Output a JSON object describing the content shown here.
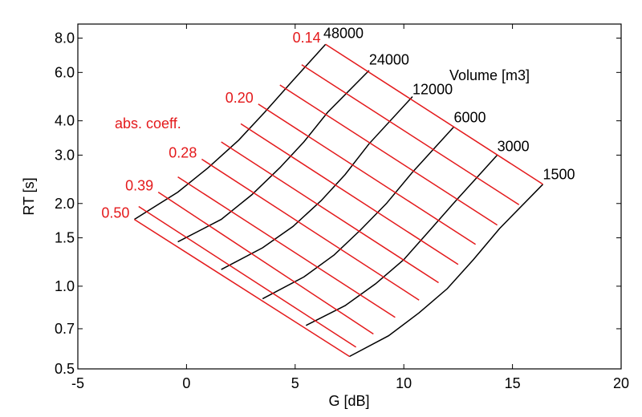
{
  "chart_data": {
    "type": "line",
    "title": "",
    "xlabel": "G  [dB]",
    "ylabel": "RT  [s]",
    "xlim": [
      -5,
      20
    ],
    "ylim": [
      0.5,
      9.0
    ],
    "y_scale": "log",
    "grid": false,
    "x_ticks": [
      -5,
      0,
      5,
      10,
      15,
      20
    ],
    "x_tick_labels": [
      "-5",
      "0",
      "5",
      "10",
      "15",
      "20"
    ],
    "y_ticks": [
      0.5,
      0.7,
      1.0,
      1.5,
      2.0,
      3.0,
      4.0,
      6.0,
      8.0
    ],
    "y_tick_labels": [
      "0.5",
      "0.7",
      "1.0",
      "1.5",
      "2.0",
      "3.0",
      "4.0",
      "6.0",
      "8.0"
    ],
    "colors": {
      "absorption": "#e41a1c",
      "volume": "#000000",
      "frame": "#000000"
    },
    "volume_label": "Volume [m3]",
    "absorption_label": "abs. coeff.",
    "absorption_series": [
      {
        "name": "0.14",
        "label_anchor": [
          -2.0,
          7.6
        ],
        "points": [
          [
            6.4,
            7.6
          ],
          [
            16.4,
            2.35
          ]
        ]
      },
      {
        "name": "",
        "points": [
          [
            5.3,
            6.4
          ],
          [
            15.3,
            1.98
          ]
        ]
      },
      {
        "name": "",
        "points": [
          [
            4.3,
            5.4
          ],
          [
            14.3,
            1.67
          ]
        ]
      },
      {
        "name": "0.20",
        "label_anchor": [
          -2.0,
          4.6
        ],
        "points": [
          [
            3.3,
            4.6
          ],
          [
            13.3,
            1.42
          ]
        ]
      },
      {
        "name": "",
        "points": [
          [
            2.5,
            3.9
          ],
          [
            12.5,
            1.2
          ]
        ]
      },
      {
        "name": "",
        "points": [
          [
            1.6,
            3.35
          ],
          [
            11.6,
            1.03
          ]
        ]
      },
      {
        "name": "0.28",
        "label_anchor": [
          -2.0,
          2.9
        ],
        "points": [
          [
            0.7,
            2.9
          ],
          [
            10.7,
            0.89
          ]
        ]
      },
      {
        "name": "",
        "points": [
          [
            -0.4,
            2.5
          ],
          [
            9.6,
            0.77
          ]
        ]
      },
      {
        "name": "0.39",
        "label_anchor": [
          -2.0,
          2.2
        ],
        "points": [
          [
            -1.3,
            2.2
          ],
          [
            8.6,
            0.67
          ]
        ]
      },
      {
        "name": "",
        "points": [
          [
            -2.2,
            1.95
          ],
          [
            7.8,
            0.6
          ]
        ]
      },
      {
        "name": "0.50",
        "label_anchor": [
          -2.0,
          1.75
        ],
        "points": [
          [
            -2.4,
            1.75
          ],
          [
            7.5,
            0.555
          ]
        ]
      }
    ],
    "volume_series": [
      {
        "name": "48000",
        "label_anchor": [
          6.3,
          8.0
        ],
        "points": [
          [
            -2.4,
            1.75
          ],
          [
            -0.4,
            2.2
          ],
          [
            1.0,
            2.7
          ],
          [
            2.4,
            3.4
          ],
          [
            3.6,
            4.3
          ],
          [
            4.8,
            5.5
          ],
          [
            6.4,
            7.6
          ]
        ]
      },
      {
        "name": "24000",
        "label_anchor": [
          8.4,
          6.4
        ],
        "points": [
          [
            -0.4,
            1.45
          ],
          [
            1.6,
            1.75
          ],
          [
            3.0,
            2.15
          ],
          [
            4.3,
            2.7
          ],
          [
            5.4,
            3.35
          ],
          [
            6.5,
            4.3
          ],
          [
            8.4,
            6.1
          ]
        ]
      },
      {
        "name": "12000",
        "label_anchor": [
          10.4,
          5.0
        ],
        "points": [
          [
            1.6,
            1.15
          ],
          [
            3.5,
            1.38
          ],
          [
            4.9,
            1.65
          ],
          [
            6.2,
            2.05
          ],
          [
            7.3,
            2.55
          ],
          [
            8.4,
            3.3
          ],
          [
            10.4,
            4.9
          ]
        ]
      },
      {
        "name": "6000",
        "label_anchor": [
          12.3,
          3.95
        ],
        "points": [
          [
            3.5,
            0.9
          ],
          [
            5.4,
            1.08
          ],
          [
            6.8,
            1.3
          ],
          [
            8.0,
            1.6
          ],
          [
            9.2,
            2.0
          ],
          [
            10.4,
            2.6
          ],
          [
            12.3,
            3.8
          ]
        ]
      },
      {
        "name": "3000",
        "label_anchor": [
          14.3,
          3.1
        ],
        "points": [
          [
            5.5,
            0.72
          ],
          [
            7.3,
            0.85
          ],
          [
            8.7,
            1.02
          ],
          [
            10.0,
            1.25
          ],
          [
            11.2,
            1.6
          ],
          [
            12.4,
            2.05
          ],
          [
            14.3,
            3.0
          ]
        ]
      },
      {
        "name": "1500",
        "label_anchor": [
          16.4,
          2.45
        ],
        "points": [
          [
            7.5,
            0.555
          ],
          [
            9.3,
            0.66
          ],
          [
            10.7,
            0.8
          ],
          [
            12.0,
            0.98
          ],
          [
            13.2,
            1.25
          ],
          [
            14.4,
            1.62
          ],
          [
            16.4,
            2.35
          ]
        ]
      }
    ]
  }
}
